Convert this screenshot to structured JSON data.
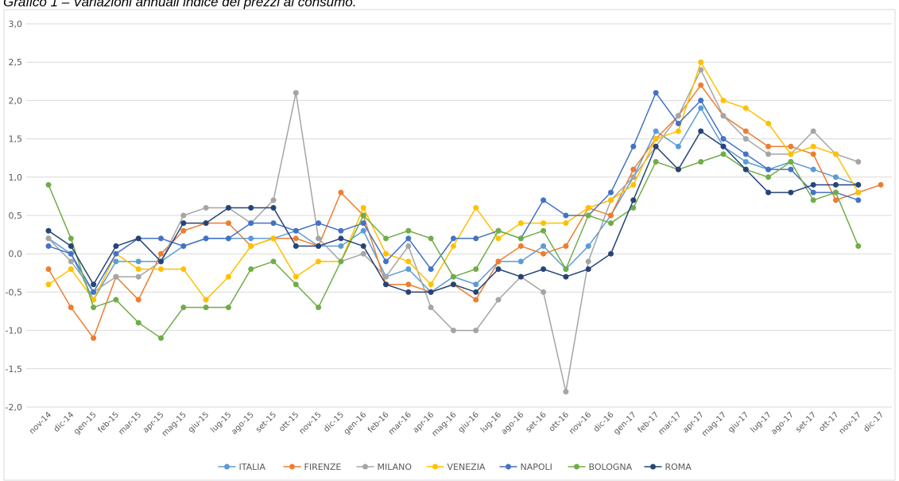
{
  "chart_data": {
    "type": "line",
    "title": "Grafico 1 – Variazioni annuali indice dei prezzi al consumo.",
    "categories": [
      "nov-14",
      "dic-14",
      "gen-15",
      "feb-15",
      "mar-15",
      "apr-15",
      "mag-15",
      "giu-15",
      "lug-15",
      "ago-15",
      "set-15",
      "ott-15",
      "nov-15",
      "dic-15",
      "gen-16",
      "feb-16",
      "mar-16",
      "apr-16",
      "mag-16",
      "giu-16",
      "lug-16",
      "ago-16",
      "set-16",
      "ott-16",
      "nov-16",
      "dic-16",
      "gen-17",
      "feb-17",
      "mar-17",
      "apr-17",
      "mag-17",
      "giu-17",
      "lug-17",
      "ago-17",
      "set-17",
      "ott-17",
      "nov-17",
      "dic-17"
    ],
    "series": [
      {
        "name": "ITALIA",
        "color": "#5b9bd5",
        "values": [
          0.2,
          0.0,
          -0.6,
          -0.1,
          -0.1,
          -0.1,
          0.1,
          0.2,
          0.2,
          0.2,
          0.2,
          0.3,
          0.1,
          0.1,
          0.3,
          -0.3,
          -0.2,
          -0.5,
          -0.3,
          -0.4,
          -0.1,
          -0.1,
          0.1,
          -0.2,
          0.1,
          0.5,
          1.0,
          1.6,
          1.4,
          1.9,
          1.4,
          1.2,
          1.1,
          1.2,
          1.1,
          1.0,
          0.9,
          null
        ]
      },
      {
        "name": "FIRENZE",
        "color": "#ed7d31",
        "values": [
          -0.2,
          -0.7,
          -1.1,
          -0.3,
          -0.6,
          0.0,
          0.3,
          0.4,
          0.4,
          0.1,
          0.2,
          0.2,
          0.1,
          0.8,
          0.5,
          -0.4,
          -0.4,
          -0.5,
          -0.4,
          -0.6,
          -0.1,
          0.1,
          0.0,
          0.1,
          0.6,
          0.5,
          1.1,
          1.5,
          1.8,
          2.2,
          1.8,
          1.6,
          1.4,
          1.4,
          1.3,
          0.7,
          0.8,
          0.9
        ]
      },
      {
        "name": "MILANO",
        "color": "#a5a5a5",
        "values": [
          0.2,
          -0.1,
          -0.5,
          -0.3,
          -0.3,
          -0.1,
          0.5,
          0.6,
          0.6,
          0.4,
          0.7,
          2.1,
          0.2,
          -0.1,
          0.0,
          -0.3,
          0.1,
          -0.7,
          -1.0,
          -1.0,
          -0.6,
          -0.3,
          -0.5,
          -1.8,
          -0.1,
          0.7,
          1.0,
          1.4,
          1.8,
          2.4,
          1.8,
          1.5,
          1.3,
          1.3,
          1.6,
          1.3,
          1.2,
          null
        ]
      },
      {
        "name": "VENEZIA",
        "color": "#ffc000",
        "values": [
          -0.4,
          -0.2,
          -0.6,
          0.0,
          -0.2,
          -0.2,
          -0.2,
          -0.6,
          -0.3,
          0.1,
          0.2,
          -0.3,
          -0.1,
          -0.1,
          0.6,
          0.0,
          -0.1,
          -0.4,
          0.1,
          0.6,
          0.2,
          0.4,
          0.4,
          0.4,
          0.6,
          0.7,
          0.9,
          1.5,
          1.6,
          2.5,
          2.0,
          1.9,
          1.7,
          1.3,
          1.4,
          1.3,
          0.8,
          null
        ]
      },
      {
        "name": "NAPOLI",
        "color": "#4472c4",
        "values": [
          0.1,
          0.0,
          -0.5,
          0.0,
          0.2,
          0.2,
          0.1,
          0.2,
          0.2,
          0.4,
          0.4,
          0.3,
          0.4,
          0.3,
          0.4,
          -0.1,
          0.2,
          -0.2,
          0.2,
          0.2,
          0.3,
          0.2,
          0.7,
          0.5,
          0.5,
          0.8,
          1.4,
          2.1,
          1.7,
          2.0,
          1.5,
          1.3,
          1.1,
          1.1,
          0.8,
          0.8,
          0.7,
          null
        ]
      },
      {
        "name": "BOLOGNA",
        "color": "#70ad47",
        "values": [
          0.9,
          0.2,
          -0.7,
          -0.6,
          -0.9,
          -1.1,
          -0.7,
          -0.7,
          -0.7,
          -0.2,
          -0.1,
          -0.4,
          -0.7,
          -0.1,
          0.5,
          0.2,
          0.3,
          0.2,
          -0.3,
          -0.2,
          0.3,
          0.2,
          0.3,
          -0.2,
          0.5,
          0.4,
          0.6,
          1.2,
          1.1,
          1.2,
          1.3,
          1.1,
          1.0,
          1.2,
          0.7,
          0.8,
          0.1,
          null
        ]
      },
      {
        "name": "ROMA",
        "color": "#264478",
        "values": [
          0.3,
          0.1,
          -0.4,
          0.1,
          0.2,
          -0.1,
          0.4,
          0.4,
          0.6,
          0.6,
          0.6,
          0.1,
          0.1,
          0.2,
          0.1,
          -0.4,
          -0.5,
          -0.5,
          -0.4,
          -0.5,
          -0.2,
          -0.3,
          -0.2,
          -0.3,
          -0.2,
          0.0,
          0.7,
          1.4,
          1.1,
          1.6,
          1.4,
          1.1,
          0.8,
          0.8,
          0.9,
          0.9,
          0.9,
          null
        ]
      }
    ],
    "ylim": [
      -2,
      3
    ],
    "yticks": [
      {
        "value": -2,
        "label": "-2,0"
      },
      {
        "value": -1.5,
        "label": "-1,5"
      },
      {
        "value": -1,
        "label": "-1,0"
      },
      {
        "value": -0.5,
        "label": "-0,5"
      },
      {
        "value": 0,
        "label": "0,0"
      },
      {
        "value": 0.5,
        "label": "0,5"
      },
      {
        "value": 1,
        "label": "1,0"
      },
      {
        "value": 1.5,
        "label": "1,5"
      },
      {
        "value": 2,
        "label": "2,0"
      },
      {
        "value": 2.5,
        "label": "2,5"
      },
      {
        "value": 3,
        "label": "3,0"
      }
    ],
    "grid": true,
    "legend": "bottom"
  }
}
